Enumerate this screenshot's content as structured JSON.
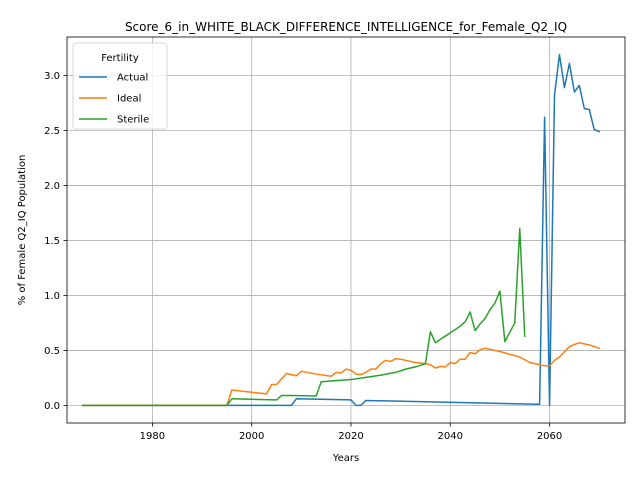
{
  "chart_data": {
    "type": "line",
    "title": "Score_6_in_WHITE_BLACK_DIFFERENCE_INTELLIGENCE_for_Female_Q2_IQ",
    "xlabel": "Years",
    "ylabel": "% of Female Q2_IQ Population",
    "xlim": [
      1962.8,
      2075.2
    ],
    "ylim": [
      -0.16,
      3.35
    ],
    "xticks": [
      1980,
      2000,
      2020,
      2040,
      2060
    ],
    "xtick_labels": [
      "1980",
      "2000",
      "2020",
      "2040",
      "2060"
    ],
    "yticks": [
      0.0,
      0.5,
      1.0,
      1.5,
      2.0,
      2.5,
      3.0
    ],
    "ytick_labels": [
      "0.0",
      "0.5",
      "1.0",
      "1.5",
      "2.0",
      "2.5",
      "3.0"
    ],
    "grid": true,
    "legend": {
      "title": "Fertility",
      "placement": "upper-left"
    },
    "series": [
      {
        "name": "Actual",
        "color": "#1f77b4",
        "points": [
          [
            1966,
            0.0
          ],
          [
            1995,
            0.0
          ],
          [
            2008,
            0.0
          ],
          [
            2009,
            0.06
          ],
          [
            2020,
            0.05
          ],
          [
            2021,
            0.0
          ],
          [
            2022,
            0.0
          ],
          [
            2023,
            0.045
          ],
          [
            2058,
            0.01
          ],
          [
            2059,
            2.62
          ],
          [
            2060,
            0.0
          ],
          [
            2061,
            2.82
          ],
          [
            2062,
            3.19
          ],
          [
            2063,
            2.89
          ],
          [
            2064,
            3.11
          ],
          [
            2065,
            2.85
          ],
          [
            2066,
            2.91
          ],
          [
            2067,
            2.7
          ],
          [
            2068,
            2.69
          ],
          [
            2069,
            2.51
          ],
          [
            2070,
            2.49
          ]
        ]
      },
      {
        "name": "Ideal",
        "color": "#ff7f0e",
        "points": [
          [
            1966,
            0.0
          ],
          [
            1995,
            0.0
          ],
          [
            1996,
            0.14
          ],
          [
            2000,
            0.12
          ],
          [
            2003,
            0.105
          ],
          [
            2004,
            0.19
          ],
          [
            2005,
            0.19
          ],
          [
            2007,
            0.29
          ],
          [
            2009,
            0.27
          ],
          [
            2010,
            0.31
          ],
          [
            2013,
            0.285
          ],
          [
            2016,
            0.265
          ],
          [
            2017,
            0.3
          ],
          [
            2018,
            0.295
          ],
          [
            2019,
            0.33
          ],
          [
            2020,
            0.32
          ],
          [
            2021,
            0.285
          ],
          [
            2022,
            0.28
          ],
          [
            2023,
            0.3
          ],
          [
            2024,
            0.33
          ],
          [
            2025,
            0.33
          ],
          [
            2026,
            0.38
          ],
          [
            2027,
            0.41
          ],
          [
            2028,
            0.4
          ],
          [
            2029,
            0.425
          ],
          [
            2030,
            0.42
          ],
          [
            2031,
            0.41
          ],
          [
            2033,
            0.39
          ],
          [
            2035,
            0.38
          ],
          [
            2036,
            0.37
          ],
          [
            2037,
            0.34
          ],
          [
            2038,
            0.355
          ],
          [
            2039,
            0.35
          ],
          [
            2040,
            0.39
          ],
          [
            2041,
            0.38
          ],
          [
            2042,
            0.42
          ],
          [
            2043,
            0.42
          ],
          [
            2044,
            0.48
          ],
          [
            2045,
            0.47
          ],
          [
            2046,
            0.505
          ],
          [
            2047,
            0.52
          ],
          [
            2050,
            0.49
          ],
          [
            2052,
            0.465
          ],
          [
            2054,
            0.44
          ],
          [
            2056,
            0.39
          ],
          [
            2058,
            0.37
          ],
          [
            2059,
            0.36
          ],
          [
            2060,
            0.36
          ],
          [
            2061,
            0.41
          ],
          [
            2062,
            0.44
          ],
          [
            2064,
            0.535
          ],
          [
            2066,
            0.57
          ],
          [
            2068,
            0.55
          ],
          [
            2070,
            0.52
          ]
        ]
      },
      {
        "name": "Sterile",
        "color": "#2ca02c",
        "points": [
          [
            1966,
            0.0
          ],
          [
            1995,
            0.0
          ],
          [
            1996,
            0.06
          ],
          [
            2005,
            0.05
          ],
          [
            2006,
            0.09
          ],
          [
            2008,
            0.09
          ],
          [
            2013,
            0.085
          ],
          [
            2014,
            0.215
          ],
          [
            2017,
            0.225
          ],
          [
            2020,
            0.235
          ],
          [
            2023,
            0.255
          ],
          [
            2026,
            0.275
          ],
          [
            2029,
            0.3
          ],
          [
            2031,
            0.33
          ],
          [
            2033,
            0.35
          ],
          [
            2035,
            0.38
          ],
          [
            2036,
            0.67
          ],
          [
            2037,
            0.57
          ],
          [
            2038,
            0.6
          ],
          [
            2040,
            0.66
          ],
          [
            2042,
            0.72
          ],
          [
            2043,
            0.76
          ],
          [
            2044,
            0.85
          ],
          [
            2045,
            0.68
          ],
          [
            2046,
            0.74
          ],
          [
            2047,
            0.79
          ],
          [
            2048,
            0.87
          ],
          [
            2049,
            0.93
          ],
          [
            2050,
            1.04
          ],
          [
            2051,
            0.58
          ],
          [
            2053,
            0.75
          ],
          [
            2054,
            1.61
          ],
          [
            2055,
            0.63
          ]
        ]
      }
    ]
  }
}
